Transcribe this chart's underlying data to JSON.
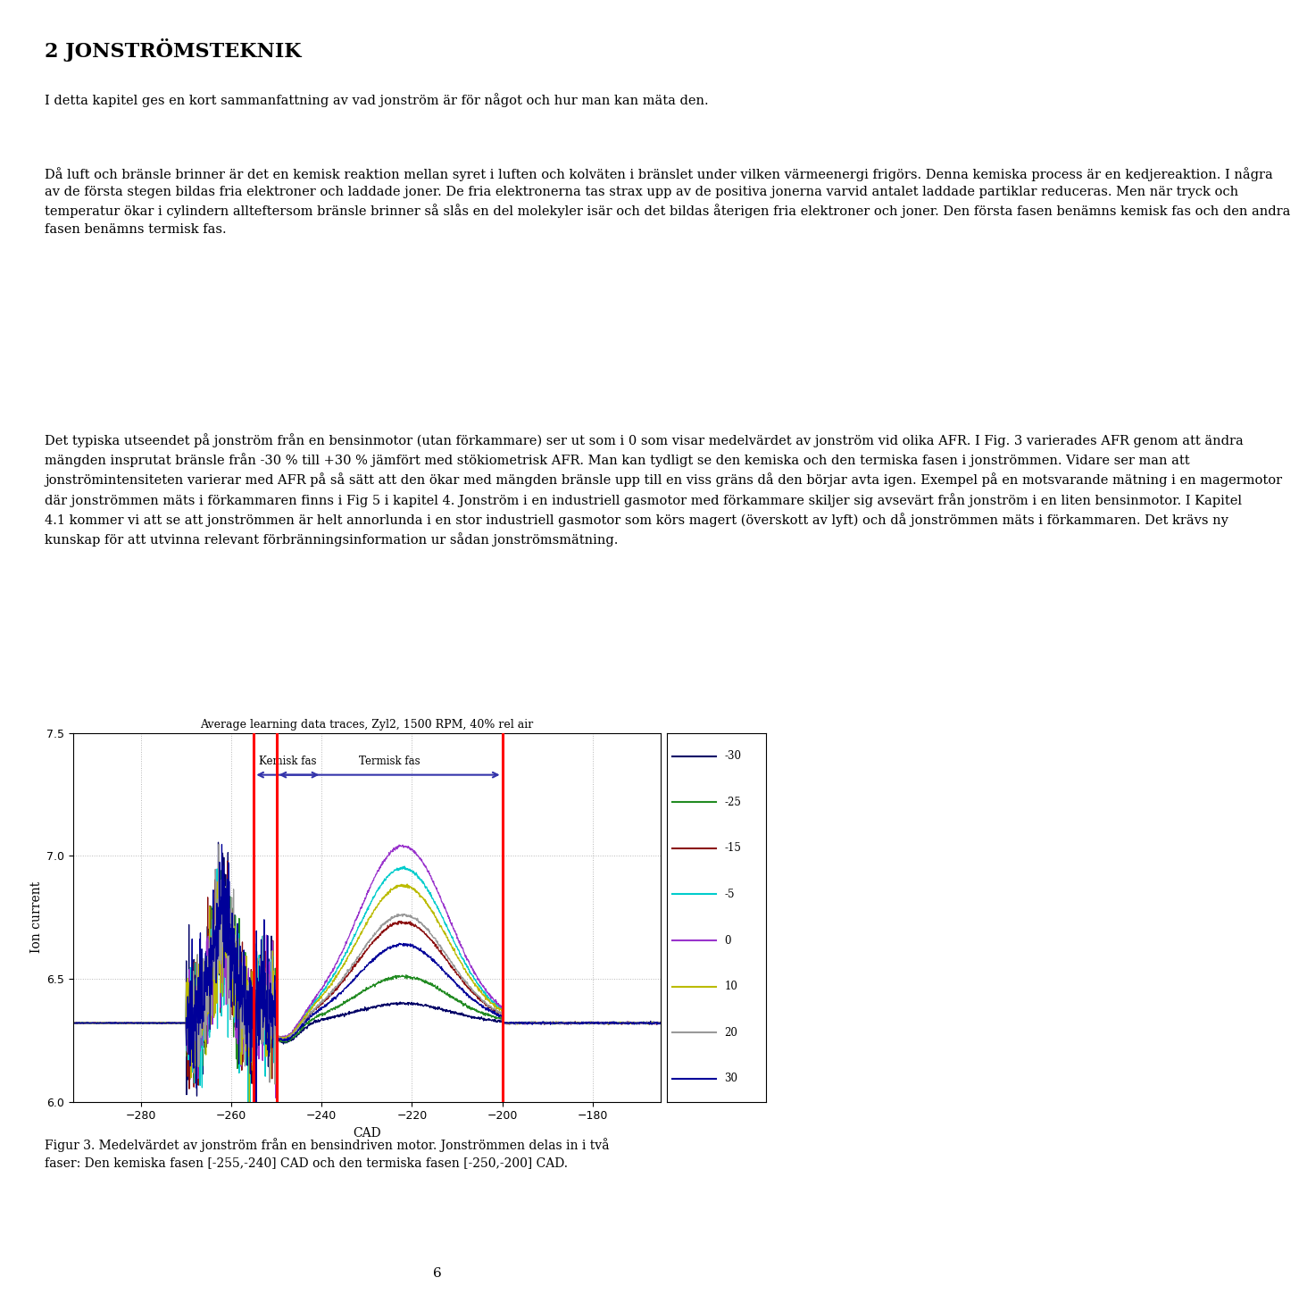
{
  "title": "2 JONSTRÖMSTEKNIK",
  "paragraph1": "I detta kapitel ges en kort sammanfattning av vad jonström är för något och hur man kan mäta den.",
  "paragraph2_lines": [
    "Då luft och bränsle brinner är det en kemisk reaktion mellan syret i luften och kolväten i bränslet under vilken värmeenergi frigörs. Denna kemiska process är en kedjereaktion. I några",
    "av de första stegen bildas fria elektroner och laddade joner. De fria elektronerna tas strax upp av de positiva jonerna varvid antalet laddade partiklar reduceras. Men när tryck och",
    "temperatur ökar i cylindern allteftersom bränsle brinner så slås en del molekyler isär och det bildas återigen fria elektroner och joner. Den första fasen benämns kemisk fas och den andra",
    "fasen benämns termisk fas."
  ],
  "paragraph3_lines": [
    "Det typiska utseendet på jonström från en bensinmotor (utan förkammare) ser ut som i 0 som visar medelvärdet av jonström vid olika AFR. I Fig. 3 varierades AFR genom att ändra",
    "mängden insprutat bränsle från -30 % till +30 % jämfört med stökiometrisk AFR. Man kan tydligt se den kemiska och den termiska fasen i jonströmmen. Vidare ser man att",
    "jonströmintensiteten varierar med AFR på så sätt att den ökar med mängden bränsle upp till en viss gräns då den börjar avta igen. Exempel på en motsvarande mätning i en magermotor",
    "där jonströmmen mäts i förkammaren finns i Fig 5 i kapitel 4. Jonström i en industriell gasmotor med förkammare skiljer sig avsevärt från jonström i en liten bensinmotor. I Kapitel",
    "4.1 kommer vi att se att jonströmmen är helt annorlunda i en stor industriell gasmotor som körs magert (överskott av lyft) och då jonströmmen mäts i förkammaren. Det krävs ny",
    "kunskap för att utvinna relevant förbränningsinformation ur sådan jonströmsmätning."
  ],
  "fig_caption_line1": "Figur 3. Medelvärdet av jonström från en bensindriven motor. Jonströmmen delas in i två",
  "fig_caption_line2": "faser: Den kemiska fasen [-255,-240] CAD och den termiska fasen [-250,-200] CAD.",
  "page_number": "6",
  "plot_title": "Average learning data traces, Zyl2, 1500 RPM, 40% rel air",
  "xlabel": "CAD",
  "ylabel": "Ion current",
  "xlim": [
    -295,
    -165
  ],
  "ylim": [
    6.0,
    7.5
  ],
  "yticks": [
    6.0,
    6.5,
    7.0,
    7.5
  ],
  "xticks": [
    -280,
    -260,
    -240,
    -220,
    -200,
    -180
  ],
  "legend_labels": [
    "-30",
    "-25",
    "-15",
    "-5",
    "0",
    "10",
    "20",
    "30"
  ],
  "legend_colors": [
    "#000066",
    "#228B22",
    "#8B1010",
    "#00CCCC",
    "#9933CC",
    "#BBBB00",
    "#999999",
    "#000099"
  ],
  "red_line_color": "#FF0000",
  "red_lines": [
    -255,
    -250,
    -200
  ],
  "arrow_color": "#3333AA",
  "kemisk_fas_label": "Kemisk fas",
  "termisk_fas_label": "Termisk fas",
  "kemisk_fas_x1": -255,
  "kemisk_fas_x2": -240,
  "termisk_fas_x1": -250,
  "termisk_fas_x2": -200,
  "background_color": "#ffffff",
  "base_level": 6.32,
  "grid_color": "#888888",
  "grid_style": ":"
}
